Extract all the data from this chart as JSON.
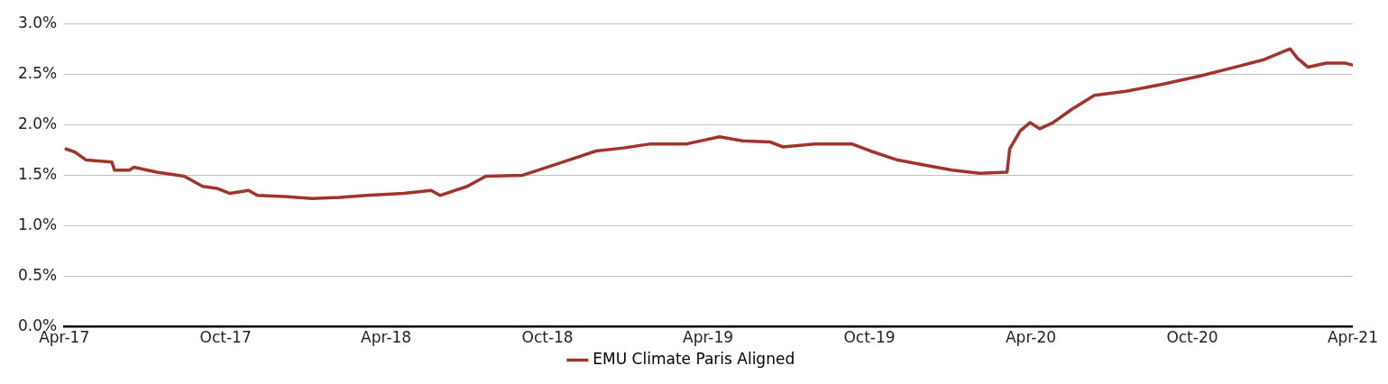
{
  "chart_data": {
    "type": "line",
    "x": [
      "2017-04-03",
      "2017-04-13",
      "2017-04-26",
      "2017-05-25",
      "2017-05-28",
      "2017-06-14",
      "2017-06-19",
      "2017-07-15",
      "2017-08-15",
      "2017-09-05",
      "2017-09-21",
      "2017-10-06",
      "2017-10-27",
      "2017-11-06",
      "2017-12-07",
      "2018-01-07",
      "2018-02-07",
      "2018-03-10",
      "2018-04-21",
      "2018-05-22",
      "2018-06-01",
      "2018-07-02",
      "2018-07-23",
      "2018-09-03",
      "2018-09-24",
      "2018-10-25",
      "2018-11-25",
      "2018-12-26",
      "2019-01-26",
      "2019-03-08",
      "2019-03-29",
      "2019-04-14",
      "2019-05-10",
      "2019-06-10",
      "2019-06-25",
      "2019-07-31",
      "2019-09-11",
      "2019-10-02",
      "2019-11-02",
      "2019-12-03",
      "2020-01-03",
      "2020-02-03",
      "2020-03-05",
      "2020-03-08",
      "2020-03-20",
      "2020-03-31",
      "2020-04-11",
      "2020-04-26",
      "2020-05-17",
      "2020-06-12",
      "2020-07-18",
      "2020-08-28",
      "2020-10-09",
      "2020-11-19",
      "2020-12-20",
      "2021-01-20",
      "2021-01-28",
      "2021-02-09",
      "2021-03-02",
      "2021-03-23",
      "2021-04-01"
    ],
    "series": [
      {
        "name": "EMU Climate Paris Aligned",
        "color": "#a0342a",
        "values": [
          1.76,
          1.73,
          1.65,
          1.63,
          1.55,
          1.55,
          1.58,
          1.53,
          1.49,
          1.39,
          1.37,
          1.32,
          1.35,
          1.3,
          1.29,
          1.27,
          1.28,
          1.3,
          1.32,
          1.35,
          1.3,
          1.39,
          1.49,
          1.5,
          1.56,
          1.65,
          1.74,
          1.77,
          1.81,
          1.81,
          1.85,
          1.88,
          1.84,
          1.83,
          1.78,
          1.81,
          1.81,
          1.74,
          1.65,
          1.6,
          1.55,
          1.52,
          1.53,
          1.76,
          1.94,
          2.02,
          1.96,
          2.02,
          2.15,
          2.29,
          2.33,
          2.4,
          2.48,
          2.57,
          2.64,
          2.75,
          2.66,
          2.57,
          2.61,
          2.61,
          2.59
        ]
      }
    ],
    "xlim": [
      "2017-04",
      "2021-04"
    ],
    "xticks": [
      {
        "value": "2017-04",
        "label": "Apr-17"
      },
      {
        "value": "2017-10",
        "label": "Oct-17"
      },
      {
        "value": "2018-04",
        "label": "Apr-18"
      },
      {
        "value": "2018-10",
        "label": "Oct-18"
      },
      {
        "value": "2019-04",
        "label": "Apr-19"
      },
      {
        "value": "2019-10",
        "label": "Oct-19"
      },
      {
        "value": "2020-04",
        "label": "Apr-20"
      },
      {
        "value": "2020-10",
        "label": "Oct-20"
      },
      {
        "value": "2021-04",
        "label": "Apr-21"
      }
    ],
    "ylim": [
      0,
      3
    ],
    "yticks": [
      {
        "value": 0,
        "label": "0.0%"
      },
      {
        "value": 0.5,
        "label": "0.5%"
      },
      {
        "value": 1,
        "label": "1.0%"
      },
      {
        "value": 1.5,
        "label": "1.5%"
      },
      {
        "value": 2,
        "label": "2.0%"
      },
      {
        "value": 2.5,
        "label": "2.5%"
      },
      {
        "value": 3,
        "label": "3.0%"
      }
    ],
    "grid": "y",
    "legend": "bottom",
    "marker": "none",
    "line_style": "solid"
  }
}
